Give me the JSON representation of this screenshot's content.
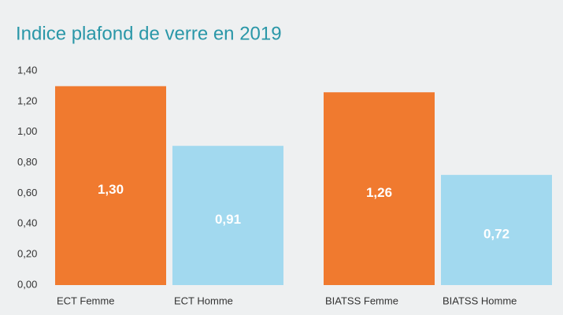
{
  "chart_data": {
    "type": "bar",
    "title": "Indice plafond de verre en 2019",
    "categories": [
      "ECT Femme",
      "ECT Homme",
      "BIATSS Femme",
      "BIATSS Homme"
    ],
    "values": [
      1.3,
      0.91,
      1.26,
      0.72
    ],
    "value_labels": [
      "1,30",
      "0,91",
      "1,26",
      "0,72"
    ],
    "colors": [
      "#f07a2f",
      "#a2d9ef",
      "#f07a2f",
      "#a2d9ef"
    ],
    "ylim": [
      0,
      1.4
    ],
    "yticks": [
      {
        "value": 0,
        "label": "0,00"
      },
      {
        "value": 0.2,
        "label": "0,20"
      },
      {
        "value": 0.4,
        "label": "0,40"
      },
      {
        "value": 0.6,
        "label": "0,60"
      },
      {
        "value": 0.8,
        "label": "0,80"
      },
      {
        "value": 1.0,
        "label": "1,00"
      },
      {
        "value": 1.2,
        "label": "1,20"
      },
      {
        "value": 1.4,
        "label": "1,40"
      }
    ],
    "grid": false
  }
}
